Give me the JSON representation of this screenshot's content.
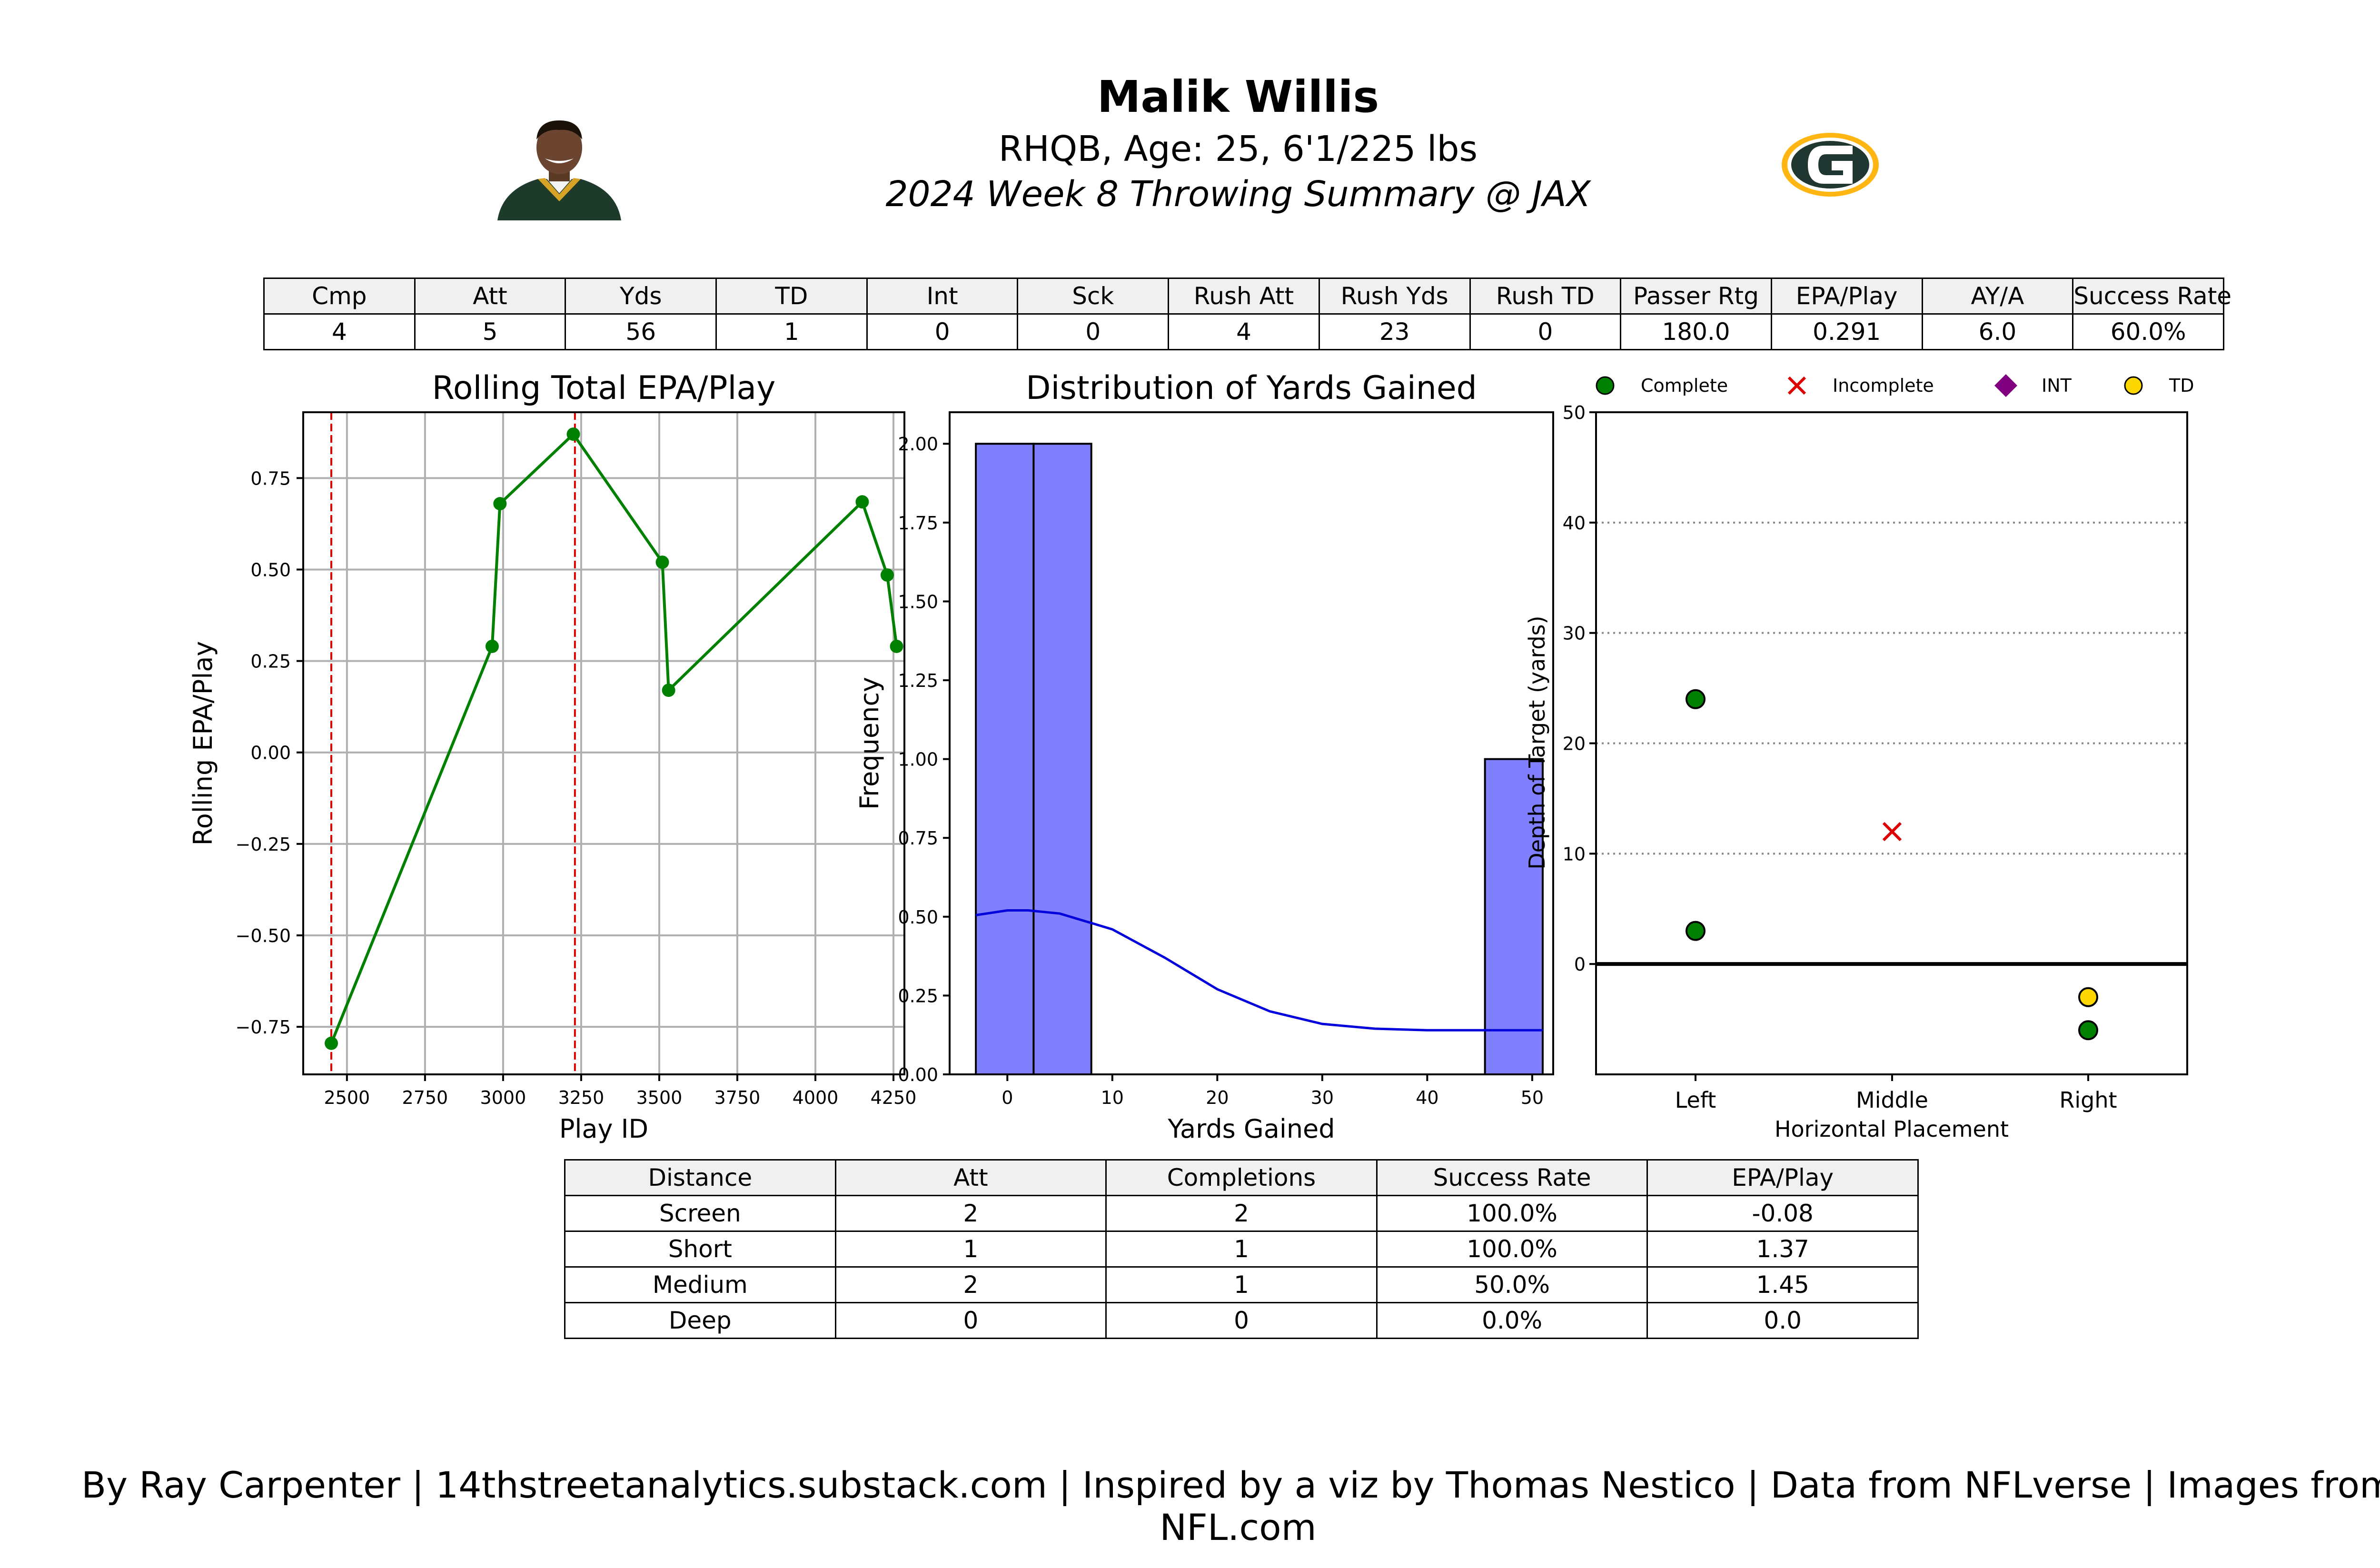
{
  "header": {
    "player_name": "Malik Willis",
    "player_info": "RHQB, Age: 25, 6'1/225 lbs",
    "game_summary": "2024 Week 8 Throwing Summary @ JAX",
    "team_logo": "packers-g-logo-icon",
    "colors": {
      "team_green": "#203731",
      "team_gold": "#FFB612"
    }
  },
  "stats_table": {
    "headers": [
      "Cmp",
      "Att",
      "Yds",
      "TD",
      "Int",
      "Sck",
      "Rush Att",
      "Rush Yds",
      "Rush TD",
      "Passer Rtg",
      "EPA/Play",
      "AY/A",
      "Success Rate"
    ],
    "values": [
      "4",
      "5",
      "56",
      "1",
      "0",
      "0",
      "4",
      "23",
      "0",
      "180.0",
      "0.291",
      "6.0",
      "60.0%"
    ]
  },
  "chart_data": [
    {
      "type": "line",
      "title": "Rolling Total EPA/Play",
      "xlabel": "Play ID",
      "ylabel": "Rolling EPA/Play",
      "xlim": [
        2360,
        4285
      ],
      "ylim": [
        -0.88,
        0.93
      ],
      "xticks": [
        "2500",
        "2750",
        "3000",
        "3250",
        "3500",
        "3750",
        "4000",
        "4250"
      ],
      "yticks": [
        "0.75",
        "0.50",
        "0.25",
        "0.00",
        "−0.25",
        "−0.50",
        "−0.75"
      ],
      "ytick_values": [
        0.75,
        0.5,
        0.25,
        0,
        -0.25,
        -0.5,
        -0.75
      ],
      "xtick_values": [
        2500,
        2750,
        3000,
        3250,
        3500,
        3750,
        4000,
        4250
      ],
      "grid": true,
      "color": "#008000",
      "vline_color": "#d40000",
      "vlines": [
        2450,
        3230
      ],
      "x": [
        2450,
        2965,
        2990,
        3225,
        3510,
        3530,
        4150,
        4230,
        4260
      ],
      "y": [
        -0.795,
        0.29,
        0.68,
        0.87,
        0.52,
        0.17,
        0.685,
        0.485,
        0.29
      ]
    },
    {
      "type": "bar",
      "title": "Distribution of Yards Gained",
      "xlabel": "Yards Gained",
      "ylabel": "Frequency",
      "xlim": [
        -5.5,
        52
      ],
      "ylim": [
        0,
        2.1
      ],
      "xticks": [
        "0",
        "10",
        "20",
        "30",
        "40",
        "50"
      ],
      "xtick_values": [
        0,
        10,
        20,
        30,
        40,
        50
      ],
      "yticks": [
        "0.00",
        "0.25",
        "0.50",
        "0.75",
        "1.00",
        "1.25",
        "1.50",
        "1.75",
        "2.00"
      ],
      "ytick_values": [
        0,
        0.25,
        0.5,
        0.75,
        1,
        1.25,
        1.5,
        1.75,
        2
      ],
      "bar_color": "#8080ff",
      "kde_color": "#0000dd",
      "bins": [
        {
          "x0": -3,
          "x1": 2.5,
          "value": 2
        },
        {
          "x0": 2.5,
          "x1": 8,
          "value": 2
        },
        {
          "x0": 45.5,
          "x1": 51,
          "value": 1
        }
      ],
      "kde": [
        {
          "x": -3,
          "y": 0.505
        },
        {
          "x": 0,
          "y": 0.52
        },
        {
          "x": 2,
          "y": 0.52
        },
        {
          "x": 5,
          "y": 0.51
        },
        {
          "x": 10,
          "y": 0.46
        },
        {
          "x": 15,
          "y": 0.37
        },
        {
          "x": 20,
          "y": 0.27
        },
        {
          "x": 25,
          "y": 0.2
        },
        {
          "x": 30,
          "y": 0.16
        },
        {
          "x": 35,
          "y": 0.145
        },
        {
          "x": 40,
          "y": 0.14
        },
        {
          "x": 45,
          "y": 0.14
        },
        {
          "x": 51,
          "y": 0.14
        }
      ]
    },
    {
      "type": "scatter",
      "title": "",
      "xlabel": "Horizontal Placement",
      "ylabel": "Depth of Target (yards)",
      "categories": [
        "Left",
        "Middle",
        "Right"
      ],
      "ylim": [
        -10,
        50
      ],
      "yticks": [
        "0",
        "10",
        "20",
        "30",
        "40",
        "50"
      ],
      "ytick_values": [
        0,
        10,
        20,
        30,
        40,
        50
      ],
      "legend": [
        {
          "label": "Complete",
          "marker": "circle",
          "color": "#008000"
        },
        {
          "label": "Incomplete",
          "marker": "x",
          "color": "#dd0000"
        },
        {
          "label": "INT",
          "marker": "diamond",
          "color": "#800080"
        },
        {
          "label": "TD",
          "marker": "circle",
          "color": "#ffd700"
        }
      ],
      "legend_position": "top",
      "points": [
        {
          "category": "Left",
          "y": 24,
          "result": "Complete"
        },
        {
          "category": "Left",
          "y": 3,
          "result": "Complete"
        },
        {
          "category": "Middle",
          "y": 12,
          "result": "Incomplete"
        },
        {
          "category": "Right",
          "y": -3,
          "result": "TD"
        },
        {
          "category": "Right",
          "y": -6,
          "result": "Complete"
        }
      ]
    }
  ],
  "distance_table": {
    "headers": [
      "Distance",
      "Att",
      "Completions",
      "Success Rate",
      "EPA/Play"
    ],
    "rows": [
      [
        "Screen",
        "2",
        "2",
        "100.0%",
        "-0.08"
      ],
      [
        "Short",
        "1",
        "1",
        "100.0%",
        "1.37"
      ],
      [
        "Medium",
        "2",
        "1",
        "50.0%",
        "1.45"
      ],
      [
        "Deep",
        "0",
        "0",
        "0.0%",
        "0.0"
      ]
    ]
  },
  "footer": "By Ray Carpenter | 14thstreetanalytics.substack.com | Inspired by a viz by Thomas Nestico | Data from NFLverse | Images from NFL.com"
}
